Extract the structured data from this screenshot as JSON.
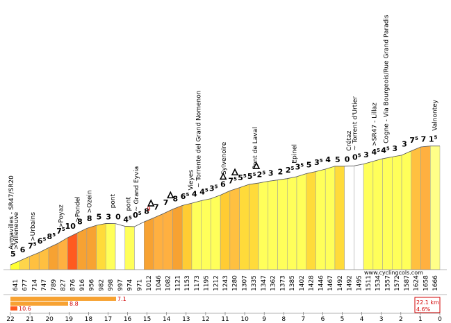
{
  "chart_data": {
    "type": "area",
    "title": "",
    "xlabel": "",
    "ylabel": "",
    "x_direction": "descending",
    "km_ticks": [
      "22",
      "21",
      "20",
      "19",
      "18",
      "17",
      "16",
      "15",
      "14",
      "13",
      "12",
      "11",
      "10",
      "9",
      "8",
      "7",
      "6",
      "5",
      "4",
      "3",
      "2",
      "1",
      "0"
    ],
    "segments": [
      {
        "alt": 641,
        "grad": "5",
        "dec": "",
        "color": "#ffff33",
        "alt_text": "641"
      },
      {
        "alt": 677,
        "grad": "6",
        "dec": "",
        "color": "#ffd54a",
        "alt_text": "677"
      },
      {
        "alt": 714,
        "grad": "7",
        "dec": "5",
        "color": "#ffc040",
        "alt_text": "714"
      },
      {
        "alt": 747,
        "grad": "6",
        "dec": "5",
        "color": "#ffc040",
        "alt_text": "747"
      },
      {
        "alt": 789,
        "grad": "8",
        "dec": "5",
        "color": "#f7a232",
        "alt_text": "789"
      },
      {
        "alt": 827,
        "grad": "7",
        "dec": "5",
        "color": "#ffb040",
        "alt_text": "827"
      },
      {
        "alt": 876,
        "grad": "10",
        "dec": "",
        "color": "#ff5a1f",
        "alt_text": "876"
      },
      {
        "alt": 916,
        "grad": "8",
        "dec": "",
        "color": "#f7a232",
        "alt_text": "916"
      },
      {
        "alt": 956,
        "grad": "8",
        "dec": "",
        "color": "#f7a232",
        "alt_text": "956"
      },
      {
        "alt": 982,
        "grad": "5",
        "dec": "",
        "color": "#ffdb3a",
        "alt_text": "982"
      },
      {
        "alt": 998,
        "grad": "3",
        "dec": "",
        "color": "#ffff5a",
        "alt_text": "998"
      },
      {
        "alt": 997,
        "grad": "0",
        "dec": "",
        "color": "#ffffff",
        "alt_text": "997"
      },
      {
        "alt": 974,
        "grad": "4",
        "dec": "5",
        "color": "#ffff5a",
        "alt_text": "974"
      },
      {
        "alt": 971,
        "grad": "0",
        "dec": "5",
        "color": "#ffffff",
        "alt_text": "971"
      },
      {
        "alt": 1012,
        "grad": "8",
        "dec": "",
        "color": "#f7a232",
        "alt_text": "1012"
      },
      {
        "alt": 1046,
        "grad": "7",
        "dec": "",
        "color": "#ffb040",
        "alt_text": "1046"
      },
      {
        "alt": 1082,
        "grad": "7",
        "dec": "",
        "color": "#ffb040",
        "alt_text": "1082"
      },
      {
        "alt": 1121,
        "grad": "8",
        "dec": "",
        "color": "#f7a232",
        "alt_text": "1121"
      },
      {
        "alt": 1153,
        "grad": "6",
        "dec": "5",
        "color": "#ffcc33",
        "alt_text": "1153"
      },
      {
        "alt": 1173,
        "grad": "4",
        "dec": "",
        "color": "#ffff5a",
        "alt_text": "1173"
      },
      {
        "alt": 1195,
        "grad": "4",
        "dec": "5",
        "color": "#ffff5a",
        "alt_text": "1195"
      },
      {
        "alt": 1212,
        "grad": "3",
        "dec": "5",
        "color": "#ffff5a",
        "alt_text": "1212"
      },
      {
        "alt": 1243,
        "grad": "6",
        "dec": "",
        "color": "#ffcc33",
        "alt_text": "1243"
      },
      {
        "alt": 1280,
        "grad": "7",
        "dec": "5",
        "color": "#ffc040",
        "alt_text": "1280"
      },
      {
        "alt": 1307,
        "grad": "5",
        "dec": "5",
        "color": "#ffdb3a",
        "alt_text": "1307"
      },
      {
        "alt": 1335,
        "grad": "5",
        "dec": "5",
        "color": "#ffdb3a",
        "alt_text": "1335"
      },
      {
        "alt": 1347,
        "grad": "2",
        "dec": "5",
        "color": "#ffff5a",
        "alt_text": "1347"
      },
      {
        "alt": 1362,
        "grad": "3",
        "dec": "",
        "color": "#ffff5a",
        "alt_text": "1362"
      },
      {
        "alt": 1373,
        "grad": "2",
        "dec": "",
        "color": "#ffff5a",
        "alt_text": "1373"
      },
      {
        "alt": 1385,
        "grad": "2",
        "dec": "5",
        "color": "#ffff5a",
        "alt_text": "1385"
      },
      {
        "alt": 1402,
        "grad": "3",
        "dec": "5",
        "color": "#ffff5a",
        "alt_text": "1402"
      },
      {
        "alt": 1428,
        "grad": "5",
        "dec": "",
        "color": "#ffdb3a",
        "alt_text": "1428"
      },
      {
        "alt": 1446,
        "grad": "3",
        "dec": "5",
        "color": "#ffff5a",
        "alt_text": "1446"
      },
      {
        "alt": 1467,
        "grad": "4",
        "dec": "",
        "color": "#ffff5a",
        "alt_text": "1467"
      },
      {
        "alt": 1492,
        "grad": "5",
        "dec": "",
        "color": "#ffdb3a",
        "alt_text": "1492"
      },
      {
        "alt": 1492,
        "grad": "0",
        "dec": "",
        "color": "#ffffff",
        "alt_text": "1492"
      },
      {
        "alt": 1495,
        "grad": "0",
        "dec": "5",
        "color": "#ffffff",
        "alt_text": "1495"
      },
      {
        "alt": 1511,
        "grad": "3",
        "dec": "",
        "color": "#ffff5a",
        "alt_text": "1511"
      },
      {
        "alt": 1534,
        "grad": "4",
        "dec": "5",
        "color": "#ffff5a",
        "alt_text": "1534"
      },
      {
        "alt": 1557,
        "grad": "4",
        "dec": "5",
        "color": "#ffff5a",
        "alt_text": "1557"
      },
      {
        "alt": 1572,
        "grad": "3",
        "dec": "",
        "color": "#ffff5a",
        "alt_text": "1572"
      },
      {
        "alt": 1587,
        "grad": "3",
        "dec": "",
        "color": "#ffff5a",
        "alt_text": "1587"
      },
      {
        "alt": 1624,
        "grad": "7",
        "dec": "5",
        "color": "#ffc040",
        "alt_text": "1624"
      },
      {
        "alt": 1658,
        "grad": "7",
        "dec": "",
        "color": "#ffb040",
        "alt_text": "1658"
      },
      {
        "alt": 1666,
        "grad": "1",
        "dec": "5",
        "color": "#ffff88",
        "alt_text": "1666"
      }
    ],
    "places": [
      {
        "km_from_start": 0.0,
        "label": "Aymavilles - SR47/SR20"
      },
      {
        "km_from_start": 0.25,
        "label": ">Villeneuve"
      },
      {
        "km_from_start": 1.1,
        "label": ">Urbains"
      },
      {
        "km_from_start": 2.55,
        "label": ">Poyaz"
      },
      {
        "km_from_start": 3.4,
        "label": ">Pondel"
      },
      {
        "km_from_start": 4.0,
        "label": ">Ozein"
      },
      {
        "km_from_start": 5.2,
        "label": "pont"
      },
      {
        "km_from_start": 6.0,
        "label": "pont"
      },
      {
        "km_from_start": 6.4,
        "label": "~ Grand Eyvia"
      },
      {
        "km_from_start": 9.2,
        "label": "Vieyes"
      },
      {
        "km_from_start": 9.6,
        "label": "~ Torrente del Grand Nomenon"
      },
      {
        "km_from_start": 10.9,
        "label": ">Sylvenoire"
      },
      {
        "km_from_start": 12.5,
        "label": "Pont de Laval"
      },
      {
        "km_from_start": 14.5,
        "label": "Epinel"
      },
      {
        "km_from_start": 17.3,
        "label": "Crétaz"
      },
      {
        "km_from_start": 17.6,
        "label": "~ Torrent d'Urtier"
      },
      {
        "km_from_start": 18.6,
        "label": ">SR47 - Lillaz"
      },
      {
        "km_from_start": 19.2,
        "label": "Cogne - Via Bourgeois/Rue Grand Paradis"
      },
      {
        "km_from_start": 21.7,
        "label": "Valnontey"
      }
    ],
    "tunnel_markers": [
      {
        "km_from_start": 7.2
      },
      {
        "km_from_start": 8.2
      },
      {
        "km_from_start": 10.9
      },
      {
        "km_from_start": 11.5
      },
      {
        "km_from_start": 12.6
      }
    ],
    "red_note": {
      "km_from_start": 7.0,
      "text": "9"
    },
    "max_gradient_bars": [
      {
        "value": 7.1,
        "label": "7.1",
        "color": "#f7a232"
      },
      {
        "value": 8.8,
        "label": "8.8",
        "color": "#f7a232"
      },
      {
        "value": 10.6,
        "label": "10.6",
        "color": "#ff5a1f"
      }
    ],
    "stats": {
      "distance": "22.1 km",
      "avg_gradient": "4.6%"
    },
    "website": "www.cyclingcols.com",
    "grid": false
  }
}
